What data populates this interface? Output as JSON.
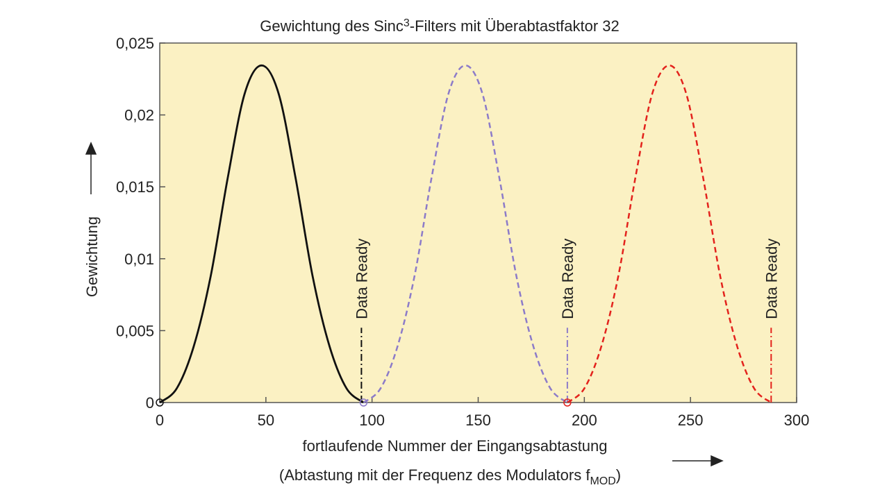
{
  "chart_data": {
    "type": "line",
    "title_parts": [
      "Gewichtung des Sinc",
      "3",
      "-Filters mit Überabtastfaktor 32"
    ],
    "ylabel": "Gewichtung",
    "xlabel": "fortlaufende Nummer der Eingangsabtastung",
    "xlabel2_parts": [
      "(Abtastung mit der Frequenz des Modulators f",
      "MOD",
      ")"
    ],
    "xlim": [
      0,
      300
    ],
    "ylim": [
      0,
      0.025
    ],
    "xticks": [
      0,
      50,
      100,
      150,
      200,
      250,
      300
    ],
    "yticks": [
      0,
      {
        "value": 0.005,
        "label": "0,005"
      },
      {
        "value": 0.01,
        "label": "0,01"
      },
      {
        "value": 0.015,
        "label": "0,015"
      },
      {
        "value": 0.02,
        "label": "0,02"
      },
      {
        "value": 0.025,
        "label": "0,025"
      }
    ],
    "series": [
      {
        "color": "#111111",
        "dashed": false,
        "x": [
          0,
          8,
          16,
          24,
          32,
          40,
          48,
          56,
          64,
          72,
          80,
          88,
          96
        ],
        "values": [
          0,
          0.00098,
          0.0039,
          0.00879,
          0.0156,
          0.02148,
          0.02344,
          0.02148,
          0.0156,
          0.00879,
          0.0039,
          0.00098,
          0
        ]
      },
      {
        "color": "#8c7bc9",
        "dashed": true,
        "x": [
          96,
          104,
          112,
          120,
          128,
          136,
          144,
          152,
          160,
          168,
          176,
          184,
          192
        ],
        "values": [
          0,
          0.00098,
          0.0039,
          0.00879,
          0.0156,
          0.02148,
          0.02344,
          0.02148,
          0.0156,
          0.00879,
          0.0039,
          0.00098,
          0
        ]
      },
      {
        "color": "#e3221c",
        "dashed": true,
        "x": [
          192,
          200,
          208,
          216,
          224,
          232,
          240,
          248,
          256,
          264,
          272,
          280,
          288
        ],
        "values": [
          0,
          0.00098,
          0.0039,
          0.00879,
          0.0156,
          0.02148,
          0.02344,
          0.02148,
          0.0156,
          0.00879,
          0.0039,
          0.00098,
          0
        ]
      }
    ],
    "annotations": [
      {
        "text": "Data Ready",
        "x": 95,
        "color": "#111111"
      },
      {
        "text": "Data Ready",
        "x": 192,
        "color": "#8c7bc9"
      },
      {
        "text": "Data Ready",
        "x": 288,
        "color": "#e3221c"
      }
    ]
  }
}
